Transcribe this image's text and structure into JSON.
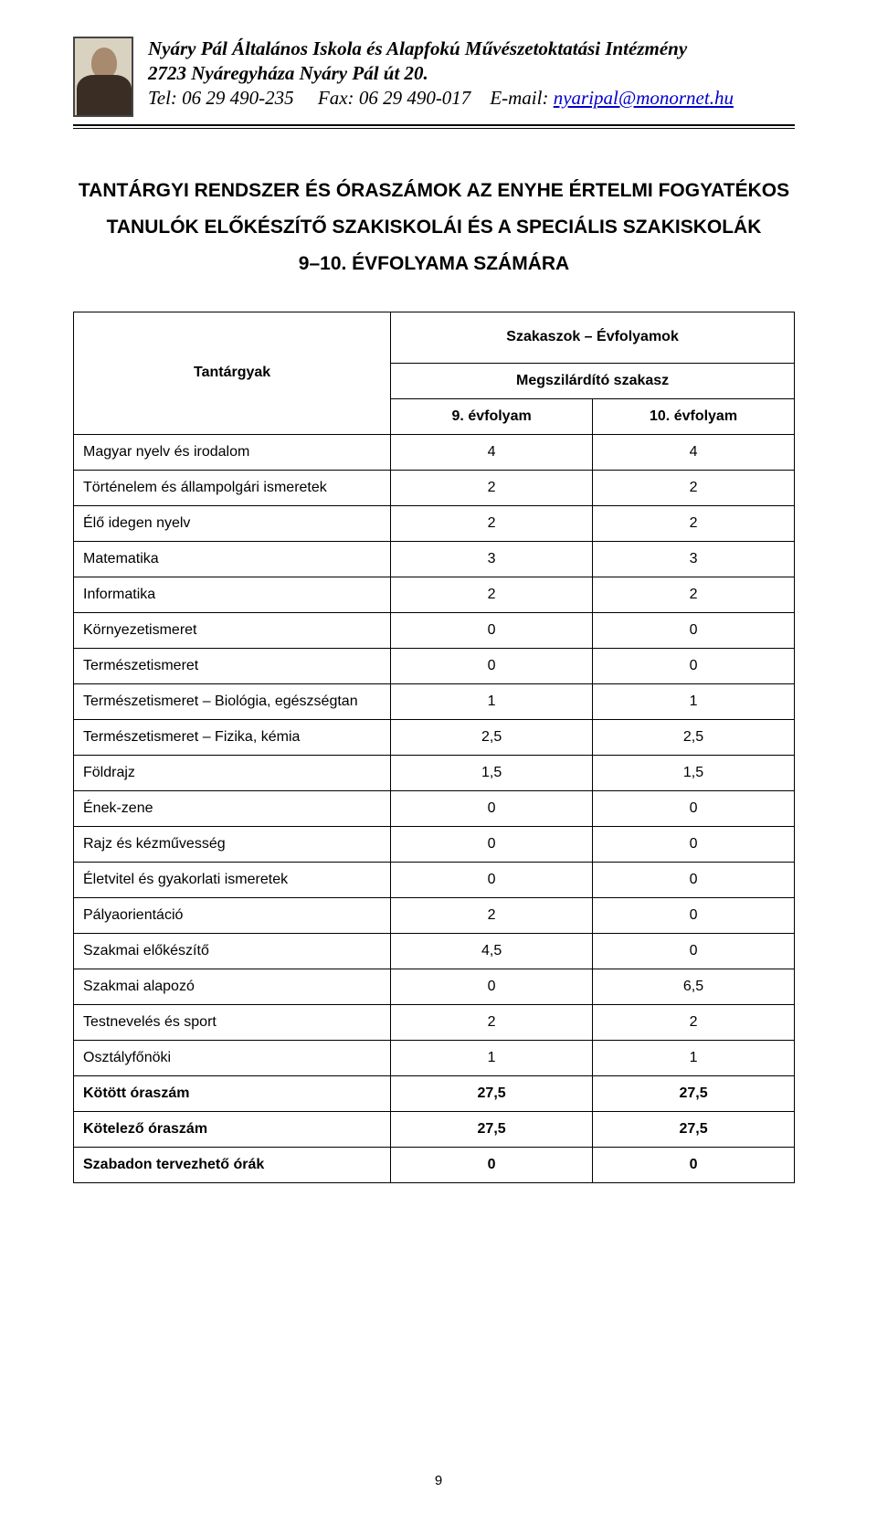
{
  "letterhead": {
    "institution": "Nyáry Pál Általános Iskola és Alapfokú Művészetoktatási Intézmény",
    "address": "2723 Nyáregyháza Nyáry Pál út 20.",
    "tel_label": "Tel:",
    "tel": "06 29 490-235",
    "fax_label": "Fax:",
    "fax": "06 29 490-017",
    "email_label": "E-mail:",
    "email": "nyaripal@monornet.hu"
  },
  "title": {
    "line1": "TANTÁRGYI RENDSZER ÉS ÓRASZÁMOK AZ ENYHE ÉRTELMI FOGYATÉKOS",
    "line2": "TANULÓK ELŐKÉSZÍTŐ SZAKISKOLÁI ÉS A SPECIÁLIS SZAKISKOLÁK",
    "line3": "9–10. ÉVFOLYAMA SZÁMÁRA"
  },
  "table": {
    "header": {
      "subjects": "Tantárgyak",
      "stages": "Szakaszok – Évfolyamok",
      "consolidating": "Megszilárdító szakasz",
      "col1": "9. évfolyam",
      "col2": "10. évfolyam"
    },
    "rows": [
      {
        "label": "Magyar nyelv és irodalom",
        "c1": "4",
        "c2": "4",
        "bold": false
      },
      {
        "label": "Történelem és állampolgári ismeretek",
        "c1": "2",
        "c2": "2",
        "bold": false
      },
      {
        "label": "Élő idegen nyelv",
        "c1": "2",
        "c2": "2",
        "bold": false
      },
      {
        "label": "Matematika",
        "c1": "3",
        "c2": "3",
        "bold": false
      },
      {
        "label": "Informatika",
        "c1": "2",
        "c2": "2",
        "bold": false
      },
      {
        "label": "Környezetismeret",
        "c1": "0",
        "c2": "0",
        "bold": false
      },
      {
        "label": "Természetismeret",
        "c1": "0",
        "c2": "0",
        "bold": false
      },
      {
        "label": "Természetismeret – Biológia, egészségtan",
        "c1": "1",
        "c2": "1",
        "bold": false
      },
      {
        "label": "Természetismeret – Fizika, kémia",
        "c1": "2,5",
        "c2": "2,5",
        "bold": false
      },
      {
        "label": "Földrajz",
        "c1": "1,5",
        "c2": "1,5",
        "bold": false
      },
      {
        "label": "Ének-zene",
        "c1": "0",
        "c2": "0",
        "bold": false
      },
      {
        "label": "Rajz és kézművesség",
        "c1": "0",
        "c2": "0",
        "bold": false
      },
      {
        "label": "Életvitel és gyakorlati ismeretek",
        "c1": "0",
        "c2": "0",
        "bold": false
      },
      {
        "label": "Pályaorientáció",
        "c1": "2",
        "c2": "0",
        "bold": false
      },
      {
        "label": "Szakmai előkészítő",
        "c1": "4,5",
        "c2": "0",
        "bold": false
      },
      {
        "label": "Szakmai alapozó",
        "c1": "0",
        "c2": "6,5",
        "bold": false
      },
      {
        "label": "Testnevelés és sport",
        "c1": "2",
        "c2": "2",
        "bold": false
      },
      {
        "label": "Osztályfőnöki",
        "c1": "1",
        "c2": "1",
        "bold": false
      },
      {
        "label": "Kötött óraszám",
        "c1": "27,5",
        "c2": "27,5",
        "bold": true
      },
      {
        "label": "Kötelező óraszám",
        "c1": "27,5",
        "c2": "27,5",
        "bold": true
      },
      {
        "label": "Szabadon tervezhető órák",
        "c1": "0",
        "c2": "0",
        "bold": true
      }
    ]
  },
  "page_number": "9"
}
